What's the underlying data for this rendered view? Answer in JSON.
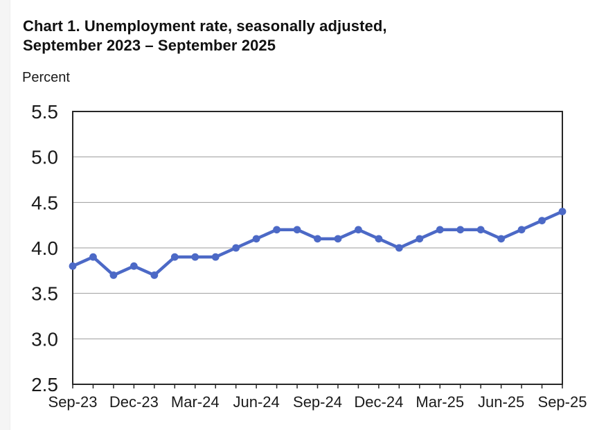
{
  "chart": {
    "title_lines": [
      "Chart 1. Unemployment rate, seasonally adjusted,",
      "September 2023 – September 2025"
    ]
  },
  "chart_data": {
    "type": "line",
    "title": "Chart 1. Unemployment rate, seasonally adjusted, September 2023 – September 2025",
    "xlabel": "",
    "ylabel": "Percent",
    "ylim": [
      2.5,
      5.5
    ],
    "y_tick_step": 0.5,
    "y_tick_labels": [
      "5.5",
      "5.0",
      "4.5",
      "4.0",
      "3.5",
      "3.0",
      "2.5"
    ],
    "x": [
      "Sep-23",
      "Oct-23",
      "Nov-23",
      "Dec-23",
      "Jan-24",
      "Feb-24",
      "Mar-24",
      "Apr-24",
      "May-24",
      "Jun-24",
      "Jul-24",
      "Aug-24",
      "Sep-24",
      "Oct-24",
      "Nov-24",
      "Dec-24",
      "Jan-25",
      "Feb-25",
      "Mar-25",
      "Apr-25",
      "May-25",
      "Jun-25",
      "Jul-25",
      "Aug-25",
      "Sep-25"
    ],
    "x_tick_labels": [
      "Sep-23",
      "Dec-23",
      "Mar-24",
      "Jun-24",
      "Sep-24",
      "Dec-24",
      "Mar-25",
      "Jun-25",
      "Sep-25"
    ],
    "x_label_every": 3,
    "series": [
      {
        "name": "Unemployment rate",
        "values": [
          3.8,
          3.9,
          3.7,
          3.8,
          3.7,
          3.9,
          3.9,
          3.9,
          4.0,
          4.1,
          4.2,
          4.2,
          4.1,
          4.1,
          4.2,
          4.1,
          4.0,
          4.1,
          4.2,
          4.2,
          4.2,
          4.1,
          4.2,
          4.3,
          4.4
        ]
      }
    ],
    "grid": true,
    "legend_position": "none",
    "marker": "circle",
    "colors": {
      "line": "#4c69c6",
      "marker": "#4c69c6",
      "axis": "#262626",
      "grid": "#9b9b9b",
      "text": "#1a1a1a"
    }
  }
}
